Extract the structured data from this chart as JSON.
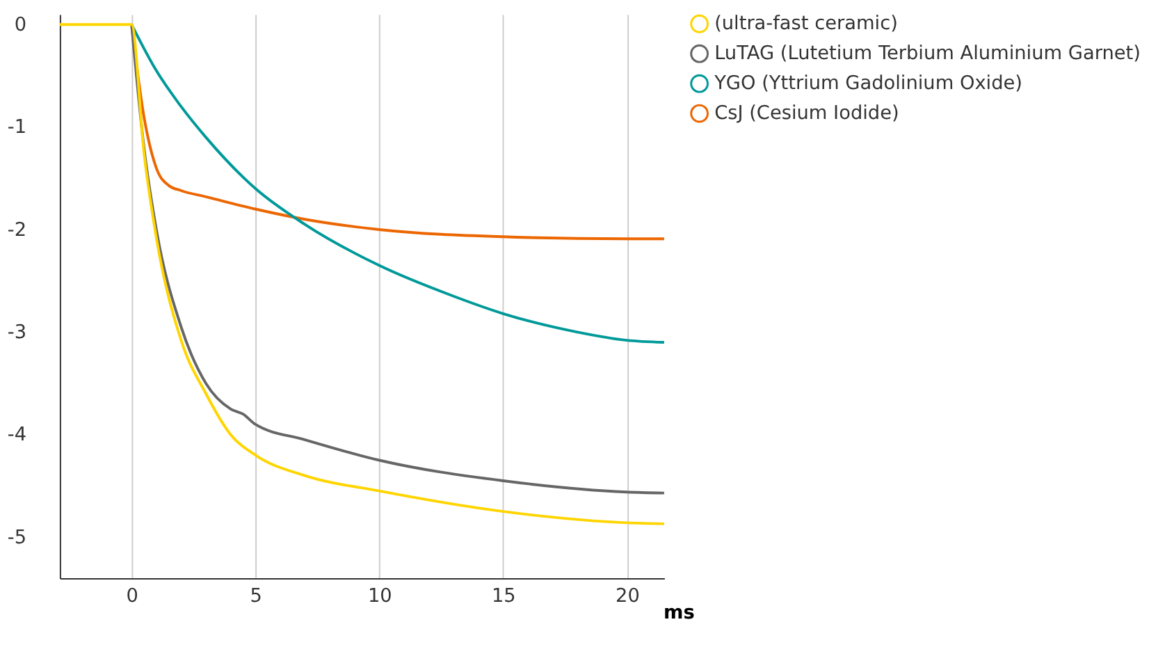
{
  "chart_data": {
    "type": "line",
    "xlabel": "ms",
    "xlim": [
      -2.9,
      21.5
    ],
    "xticks": [
      0,
      5,
      10,
      15,
      20
    ],
    "ylim": [
      -5.4,
      0.1
    ],
    "yticks": [
      0,
      -1,
      -2,
      -3,
      -4,
      -5
    ],
    "grid": "x",
    "legend": "top right",
    "line_style": "solid",
    "marker": "none",
    "series": [
      {
        "name": "(ultra-fast ceramic)",
        "color": "#ffd500",
        "x": [
          -2.9,
          0,
          0.5,
          1,
          2,
          3,
          4,
          5,
          7,
          10,
          15,
          20,
          21.5
        ],
        "values": [
          0,
          0,
          -1.25,
          -2.08,
          -3.08,
          -3.6,
          -4.0,
          -4.2,
          -4.4,
          -4.55,
          -4.75,
          -4.86,
          -4.87
        ]
      },
      {
        "name": "LuTAG (Lutetium Terbium Aluminium Garnet)",
        "color": "#666666",
        "x": [
          0,
          0.5,
          1,
          2,
          3,
          4,
          4.5,
          5,
          7,
          10,
          15,
          20,
          21.5
        ],
        "values": [
          0,
          -1.2,
          -2.0,
          -2.95,
          -3.5,
          -3.75,
          -3.8,
          -3.9,
          -4.05,
          -4.25,
          -4.45,
          -4.56,
          -4.57
        ]
      },
      {
        "name": "YGO (Yttrium Gadolinium Oxide)",
        "color": "#009999",
        "x": [
          0,
          1,
          2,
          3,
          5,
          7,
          10,
          13,
          15,
          18,
          20,
          21.5
        ],
        "values": [
          0,
          -0.45,
          -0.8,
          -1.1,
          -1.6,
          -1.95,
          -2.35,
          -2.65,
          -2.82,
          -3.0,
          -3.08,
          -3.1
        ]
      },
      {
        "name": "CsJ (Cesium Iodide)",
        "color": "#ec6602",
        "x": [
          0,
          0.5,
          1,
          1.5,
          2,
          3,
          5,
          7,
          10,
          15,
          20,
          21.5
        ],
        "values": [
          0,
          -0.9,
          -1.4,
          -1.57,
          -1.62,
          -1.68,
          -1.8,
          -1.9,
          -2.0,
          -2.07,
          -2.09,
          -2.09
        ]
      }
    ]
  }
}
